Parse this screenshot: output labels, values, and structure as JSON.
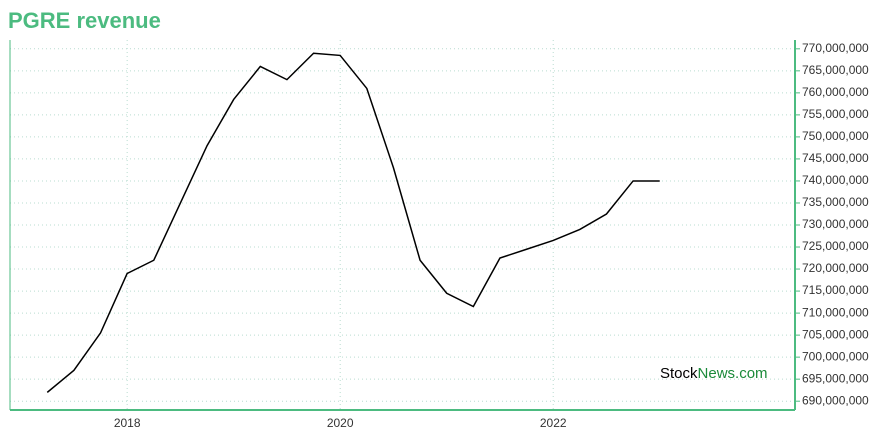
{
  "chart_data": {
    "type": "line",
    "title": "PGRE revenue",
    "x": [
      2017.25,
      2017.5,
      2017.75,
      2018,
      2018.25,
      2018.5,
      2018.75,
      2019,
      2019.25,
      2019.5,
      2019.75,
      2020,
      2020.25,
      2020.5,
      2020.75,
      2021,
      2021.25,
      2021.5,
      2021.75,
      2022,
      2022.25,
      2022.5,
      2022.75,
      2023
    ],
    "series": [
      {
        "color": "#000000",
        "values": [
          692000000,
          697000000,
          705500000,
          719000000,
          722000000,
          735000000,
          748000000,
          758500000,
          766000000,
          763000000,
          769000000,
          768500000,
          761000000,
          743000000,
          722000000,
          714500000,
          711500000,
          722500000,
          724500000,
          726500000,
          729000000,
          732500000,
          740000000,
          740000000
        ]
      }
    ],
    "xlim": [
      2016.9,
      2024.27
    ],
    "xticks": [
      2018,
      2020,
      2022
    ],
    "ylim": [
      688000000,
      772000000
    ],
    "yticks": [
      {
        "value": 690000000,
        "label": "690,000,000"
      },
      {
        "value": 695000000,
        "label": "695,000,000"
      },
      {
        "value": 700000000,
        "label": "700,000,000"
      },
      {
        "value": 705000000,
        "label": "705,000,000"
      },
      {
        "value": 710000000,
        "label": "710,000,000"
      },
      {
        "value": 715000000,
        "label": "715,000,000"
      },
      {
        "value": 720000000,
        "label": "720,000,000"
      },
      {
        "value": 725000000,
        "label": "725,000,000"
      },
      {
        "value": 730000000,
        "label": "730,000,000"
      },
      {
        "value": 735000000,
        "label": "735,000,000"
      },
      {
        "value": 740000000,
        "label": "740,000,000"
      },
      {
        "value": 745000000,
        "label": "745,000,000"
      },
      {
        "value": 750000000,
        "label": "750,000,000"
      },
      {
        "value": 755000000,
        "label": "755,000,000"
      },
      {
        "value": 760000000,
        "label": "760,000,000"
      },
      {
        "value": 765000000,
        "label": "765,000,000"
      },
      {
        "value": 770000000,
        "label": "770,000,000"
      }
    ],
    "grid": true,
    "watermark": [
      "Stock",
      "News.com"
    ]
  }
}
